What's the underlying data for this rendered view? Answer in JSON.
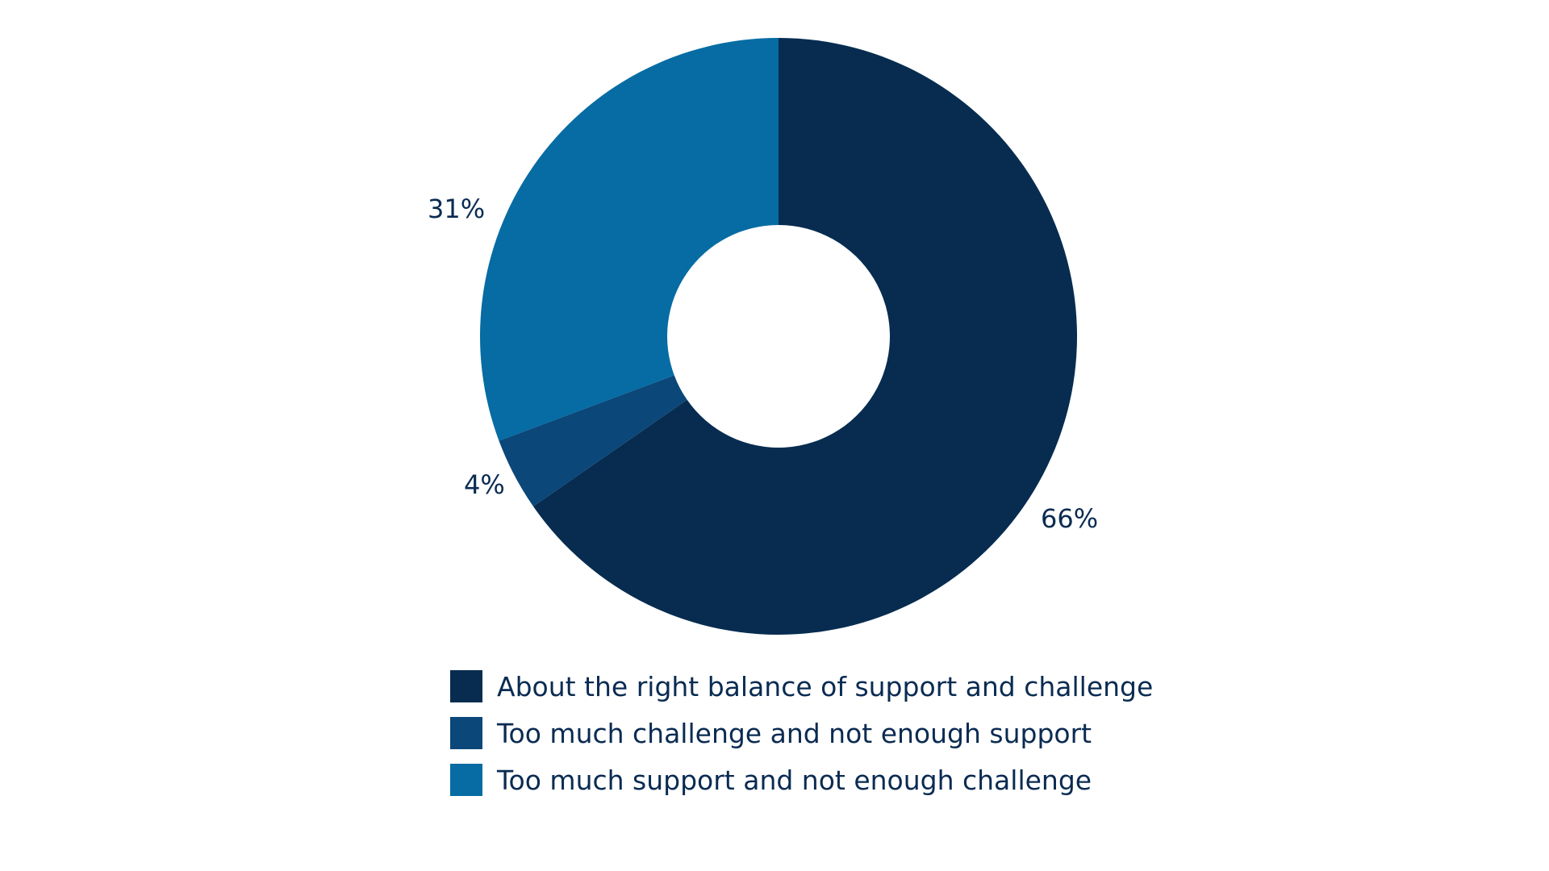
{
  "chart_data": {
    "type": "pie",
    "title": "",
    "donut": true,
    "start_angle_deg": 0,
    "direction": "clockwise",
    "legend_position": "bottom",
    "categories": [
      "About the right balance of support and challenge",
      "Too much challenge and not enough support",
      "Too much support and not enough challenge"
    ],
    "values": [
      66,
      4,
      31
    ],
    "labels": [
      "66%",
      "4%",
      "31%"
    ],
    "colors": [
      "#072c50",
      "#0b4779",
      "#066ca3"
    ]
  }
}
